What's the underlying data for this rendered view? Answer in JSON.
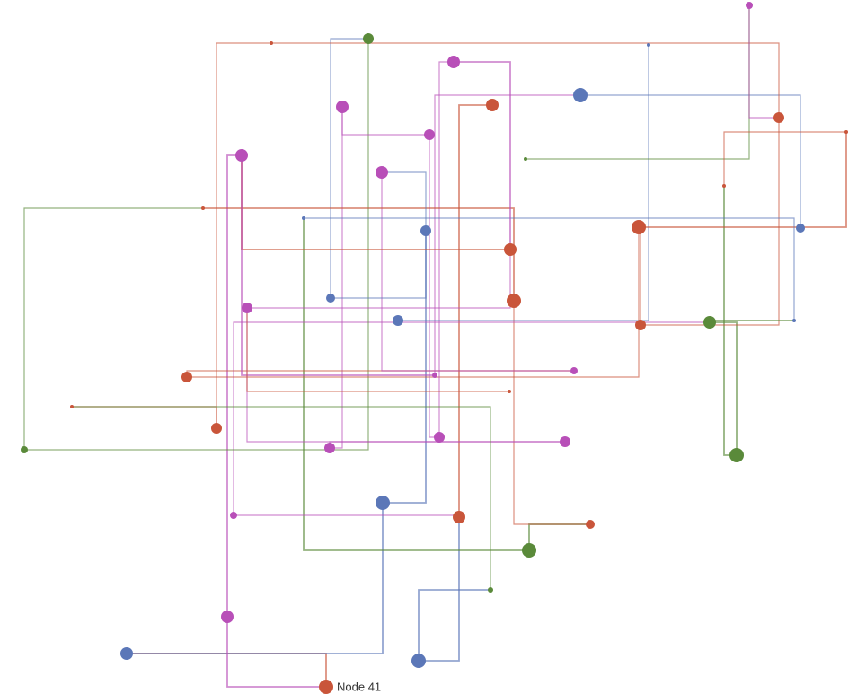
{
  "nodes": [
    {
      "label": "Node 41"
    }
  ]
}
